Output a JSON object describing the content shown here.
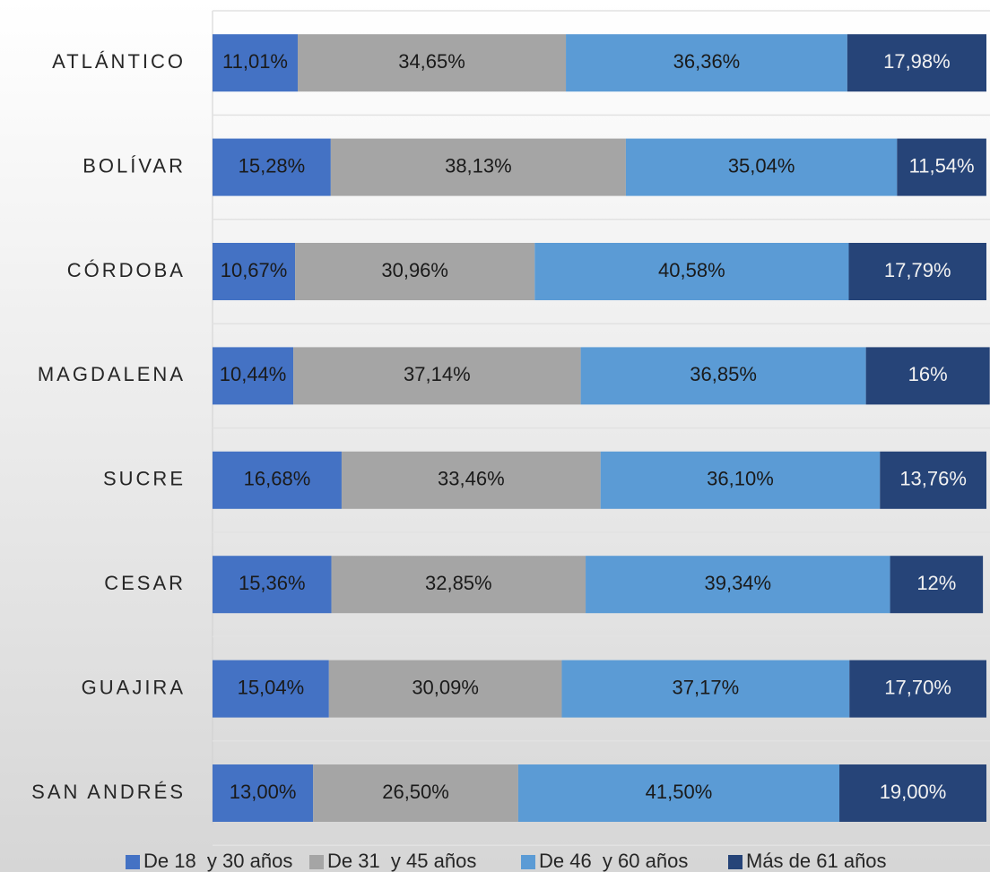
{
  "chart_data": {
    "type": "bar",
    "orientation": "horizontal",
    "stacked": true,
    "categories": [
      "ATLÁNTICO",
      "BOLÍVAR",
      "CÓRDOBA",
      "MAGDALENA",
      "SUCRE",
      "CESAR",
      "GUAJIRA",
      "SAN ANDRÉS"
    ],
    "xlim": [
      0,
      100
    ],
    "legend": "bottom",
    "series": [
      {
        "name": "De 18  y 30 años",
        "color": "#4472c4",
        "values": [
          11.01,
          15.28,
          10.67,
          10.44,
          16.68,
          15.36,
          15.04,
          13.0
        ],
        "value_labels": [
          "11,01%",
          "15,28%",
          "10,67%",
          "10,44%",
          "16,68%",
          "15,36%",
          "15,04%",
          "13,00%"
        ]
      },
      {
        "name": "De 31  y 45 años",
        "color": "#a5a5a5",
        "values": [
          34.65,
          38.13,
          30.96,
          37.14,
          33.46,
          32.85,
          30.09,
          26.5
        ],
        "value_labels": [
          "34,65%",
          "38,13%",
          "30,96%",
          "37,14%",
          "33,46%",
          "32,85%",
          "30,09%",
          "26,50%"
        ]
      },
      {
        "name": "De 46  y 60 años",
        "color": "#5b9bd5",
        "values": [
          36.36,
          35.04,
          40.58,
          36.85,
          36.1,
          39.34,
          37.17,
          41.5
        ],
        "value_labels": [
          "36,36%",
          "35,04%",
          "40,58%",
          "36,85%",
          "36,10%",
          "39,34%",
          "37,17%",
          "41,50%"
        ]
      },
      {
        "name": "Más de 61 años",
        "color": "#264478",
        "values": [
          17.98,
          11.54,
          17.79,
          16,
          13.76,
          12,
          17.7,
          19.0
        ],
        "value_labels": [
          "17,98%",
          "11,54%",
          "17,79%",
          "16%",
          "13,76%",
          "12%",
          "17,70%",
          "19,00%"
        ]
      }
    ]
  }
}
